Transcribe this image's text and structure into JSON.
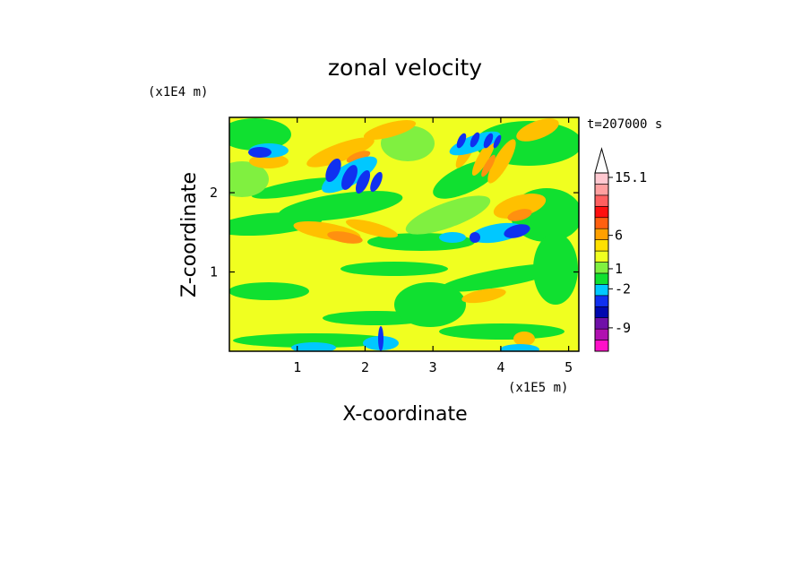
{
  "chart_data": {
    "type": "heatmap",
    "title": "zonal velocity",
    "xlabel": "X-coordinate",
    "ylabel": "Z-coordinate",
    "x_scale_label": "(x1E5 m)",
    "y_scale_label": "(x1E4 m)",
    "time_label": "t=207000 s",
    "xlim": [
      0,
      5.15
    ],
    "ylim": [
      0,
      2.95
    ],
    "x_ticks": [
      "1",
      "2",
      "3",
      "4",
      "5"
    ],
    "x_tick_values": [
      1,
      2,
      3,
      4,
      5
    ],
    "y_ticks": [
      "1",
      "2"
    ],
    "y_tick_values": [
      1,
      2
    ],
    "colorbar": {
      "ticks": [
        "15.1",
        "6",
        "1",
        "-2",
        "-9"
      ],
      "tick_values": [
        15.1,
        6,
        1,
        -2,
        -9
      ],
      "colors": [
        "#ff10c8",
        "#b010b0",
        "#7010a8",
        "#0008b0",
        "#1030f0",
        "#00c8ff",
        "#10e030",
        "#80f040",
        "#f0ff20",
        "#ffe000",
        "#ffa000",
        "#ff6010",
        "#ff1010",
        "#ff6060",
        "#ffa0a0",
        "#ffc8d0"
      ]
    },
    "field_colors": {
      "background": "#f0ff20",
      "green": "#10e030",
      "light_green": "#80f040",
      "orange": "#ffc000",
      "dark_orange": "#ff9010",
      "cyan": "#00c8ff",
      "blue": "#1030f0",
      "dark_blue": "#0008b0"
    }
  }
}
